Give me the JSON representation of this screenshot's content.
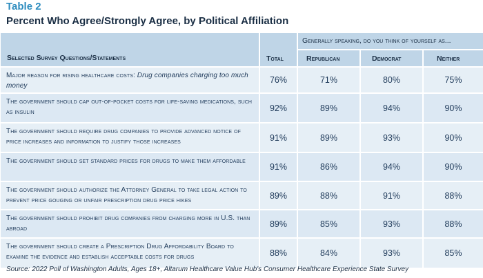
{
  "table_label": "Table 2",
  "title": "Percent Who Agree/Strongly Agree, by Political Affiliation",
  "header": {
    "statement_col": "Selected Survey Questions/Statements",
    "total_col": "Total",
    "group_label": "Generally speaking, do you think of yourself as...",
    "groups": [
      "Republican",
      "Democrat",
      "Neither"
    ]
  },
  "rows": [
    {
      "statement_prefix": "Major reason for rising healthcare costs: ",
      "statement_italic": "Drug companies charging too much money",
      "total": "76%",
      "republican": "71%",
      "democrat": "80%",
      "neither": "75%"
    },
    {
      "statement_prefix": "The government should cap out-of-pocket costs for life-saving medications, such as insulin",
      "statement_italic": "",
      "total": "92%",
      "republican": "89%",
      "democrat": "94%",
      "neither": "90%"
    },
    {
      "statement_prefix": "The government should require drug companies to provide advanced notice of price increases and information to justify those increases",
      "statement_italic": "",
      "total": "91%",
      "republican": "89%",
      "democrat": "93%",
      "neither": "90%"
    },
    {
      "statement_prefix": "The government should set standard prices for drugs to make them affordable",
      "statement_italic": "",
      "total": "91%",
      "republican": "86%",
      "democrat": "94%",
      "neither": "90%"
    },
    {
      "statement_prefix": "The government should authorize the Attorney General to take legal action to prevent price gouging or unfair prescription drug price hikes",
      "statement_italic": "",
      "total": "89%",
      "republican": "88%",
      "democrat": "91%",
      "neither": "88%"
    },
    {
      "statement_prefix": "The government should prohibit drug companies from charging more in U.S. than abroad",
      "statement_italic": "",
      "total": "89%",
      "republican": "85%",
      "democrat": "93%",
      "neither": "88%"
    },
    {
      "statement_prefix": "The government should create a Prescription Drug Affordability Board to examine the evidence and establish acceptable costs for drugs",
      "statement_italic": "",
      "total": "88%",
      "republican": "84%",
      "democrat": "93%",
      "neither": "85%"
    }
  ],
  "source": "Source: 2022 Poll of Washington Adults, Ages 18+, Altarum Healthcare Value Hub's Consumer Healthcare Experience State Survey"
}
